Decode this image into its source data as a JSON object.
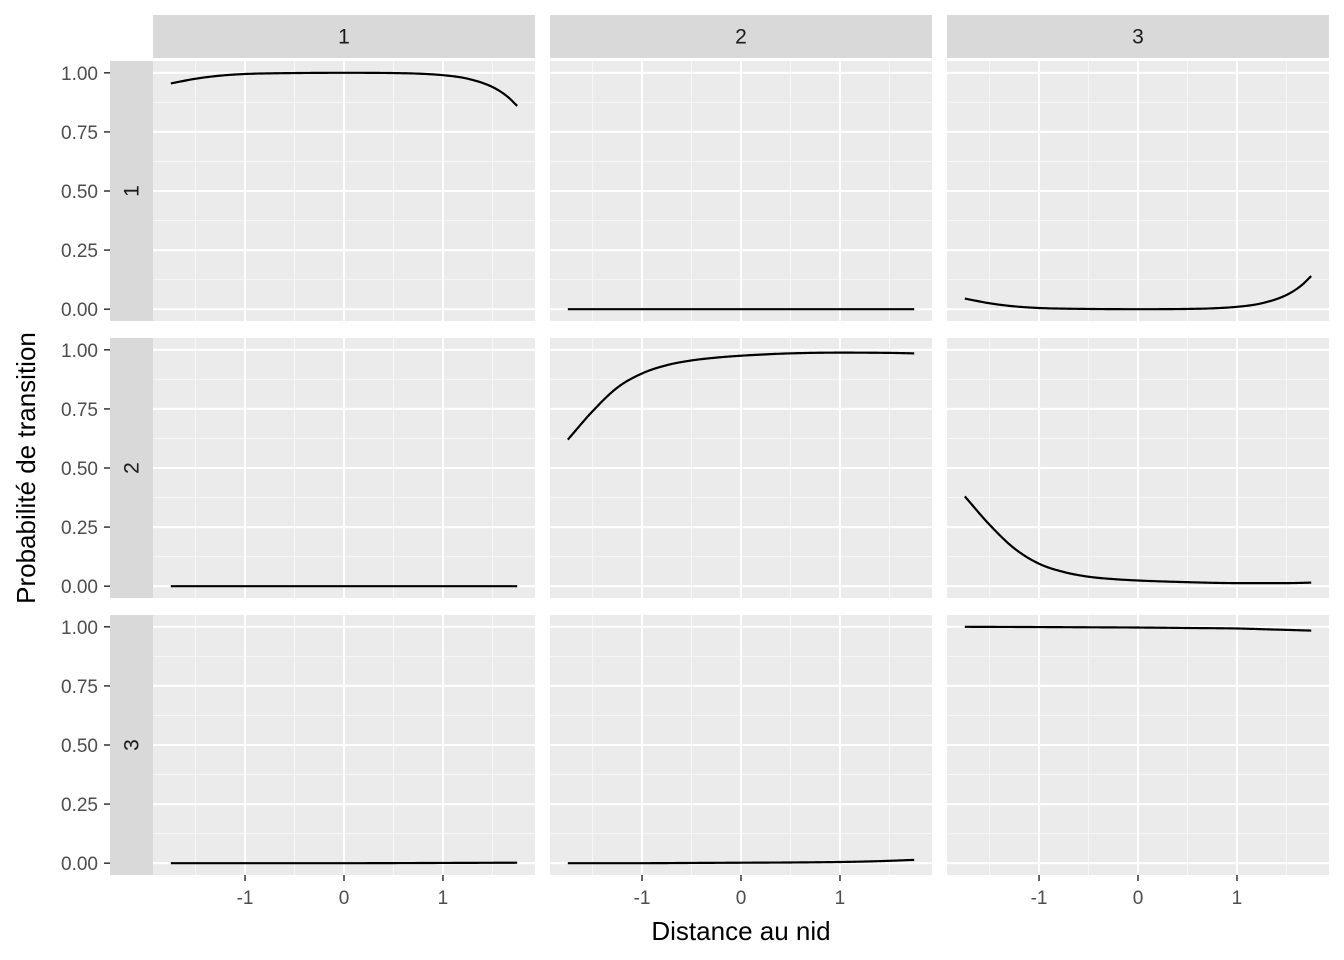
{
  "chart_data": {
    "type": "line",
    "facet_grid": true,
    "xlabel": "Distance au nid",
    "ylabel": "Probabilité de transition",
    "col_strips": [
      "1",
      "2",
      "3"
    ],
    "row_strips": [
      "1",
      "2",
      "3"
    ],
    "xlim": [
      -1.93,
      1.93
    ],
    "ylim": [
      -0.05,
      1.05
    ],
    "x_ticks": [
      -1,
      0,
      1
    ],
    "x_tick_labels": [
      "-1",
      "0",
      "1"
    ],
    "y_ticks": [
      0,
      0.25,
      0.5,
      0.75,
      1
    ],
    "y_tick_labels": [
      "0.00",
      "0.25",
      "0.50",
      "0.75",
      "1.00"
    ],
    "grid": true,
    "panel_background": "#ebebeb",
    "strip_background": "#d9d9d9",
    "line_color": "#000000",
    "panels": [
      {
        "row": "1",
        "col": "1",
        "x": [
          -1.75,
          -1.5,
          -1.25,
          -1.0,
          -0.5,
          0.0,
          0.5,
          1.0,
          1.25,
          1.5,
          1.65,
          1.75
        ],
        "y": [
          0.955,
          0.975,
          0.988,
          0.995,
          0.999,
          1.0,
          0.999,
          0.99,
          0.975,
          0.94,
          0.9,
          0.86
        ]
      },
      {
        "row": "1",
        "col": "2",
        "x": [
          -1.75,
          -1.0,
          0.0,
          1.0,
          1.75
        ],
        "y": [
          0.0,
          0.0,
          0.0,
          0.0,
          0.0
        ]
      },
      {
        "row": "1",
        "col": "3",
        "x": [
          -1.75,
          -1.5,
          -1.25,
          -1.0,
          -0.5,
          0.0,
          0.5,
          1.0,
          1.25,
          1.5,
          1.65,
          1.75
        ],
        "y": [
          0.045,
          0.025,
          0.012,
          0.005,
          0.001,
          0.0,
          0.001,
          0.01,
          0.025,
          0.06,
          0.1,
          0.14
        ]
      },
      {
        "row": "2",
        "col": "1",
        "x": [
          -1.75,
          -1.0,
          0.0,
          1.0,
          1.75
        ],
        "y": [
          0.0,
          0.0,
          0.0,
          0.0,
          0.0
        ]
      },
      {
        "row": "2",
        "col": "2",
        "x": [
          -1.75,
          -1.5,
          -1.25,
          -1.0,
          -0.75,
          -0.5,
          -0.25,
          0.0,
          0.5,
          1.0,
          1.5,
          1.75
        ],
        "y": [
          0.62,
          0.74,
          0.84,
          0.9,
          0.935,
          0.955,
          0.967,
          0.975,
          0.985,
          0.988,
          0.987,
          0.985
        ]
      },
      {
        "row": "2",
        "col": "3",
        "x": [
          -1.75,
          -1.5,
          -1.25,
          -1.0,
          -0.75,
          -0.5,
          -0.25,
          0.0,
          0.5,
          1.0,
          1.5,
          1.75
        ],
        "y": [
          0.38,
          0.26,
          0.16,
          0.095,
          0.06,
          0.04,
          0.03,
          0.024,
          0.017,
          0.013,
          0.013,
          0.015
        ]
      },
      {
        "row": "3",
        "col": "1",
        "x": [
          -1.75,
          -1.0,
          0.0,
          1.0,
          1.75
        ],
        "y": [
          0.0,
          0.0,
          0.0,
          0.001,
          0.002
        ]
      },
      {
        "row": "3",
        "col": "2",
        "x": [
          -1.75,
          -1.0,
          -0.5,
          0.0,
          0.5,
          1.0,
          1.25,
          1.5,
          1.75
        ],
        "y": [
          0.0,
          0.0,
          0.001,
          0.002,
          0.003,
          0.005,
          0.007,
          0.01,
          0.014
        ]
      },
      {
        "row": "3",
        "col": "3",
        "x": [
          -1.75,
          -1.0,
          -0.5,
          0.0,
          0.5,
          1.0,
          1.25,
          1.5,
          1.75
        ],
        "y": [
          1.0,
          0.999,
          0.998,
          0.997,
          0.995,
          0.993,
          0.99,
          0.987,
          0.984
        ]
      }
    ]
  }
}
